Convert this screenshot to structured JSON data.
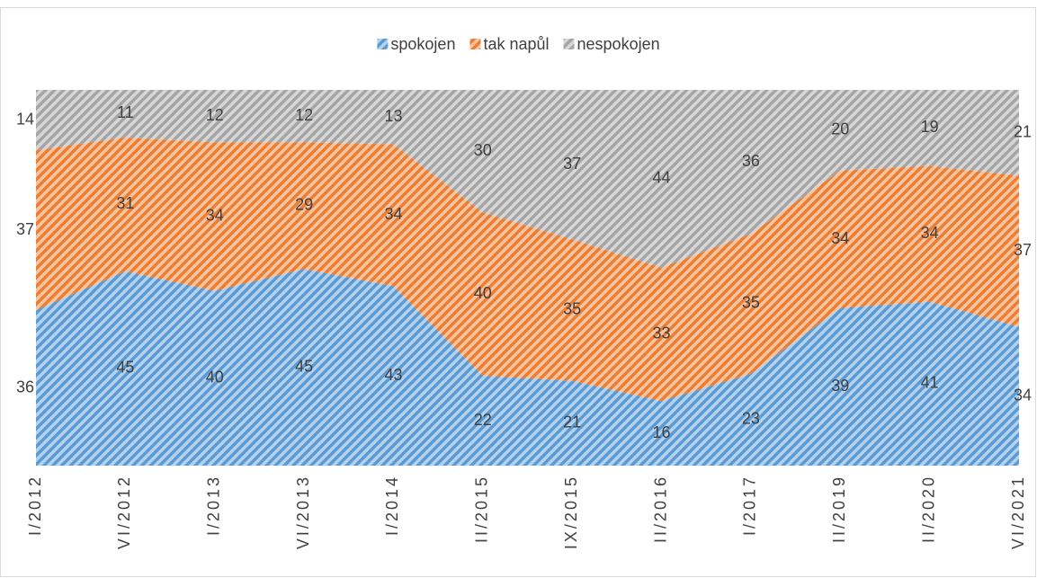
{
  "chart_data": {
    "type": "area",
    "stacked": "percent",
    "categories": [
      "I/2012",
      "VI/2012",
      "I/2013",
      "VI/2013",
      "I/2014",
      "II/2015",
      "IX/2015",
      "II/2016",
      "I/2017",
      "II/2019",
      "II/2020",
      "VI/2021"
    ],
    "series": [
      {
        "name": "spokojen",
        "color": "#5b9bd5",
        "values": [
          36,
          45,
          40,
          45,
          43,
          22,
          21,
          16,
          23,
          39,
          41,
          34
        ]
      },
      {
        "name": "tak napůl",
        "color": "#ed7d31",
        "values": [
          37,
          31,
          34,
          29,
          34,
          40,
          35,
          33,
          35,
          34,
          34,
          37
        ]
      },
      {
        "name": "nespokojen",
        "color": "#a5a5a5",
        "values": [
          14,
          11,
          12,
          12,
          13,
          30,
          37,
          44,
          36,
          20,
          19,
          21
        ]
      }
    ],
    "legend": "top"
  }
}
